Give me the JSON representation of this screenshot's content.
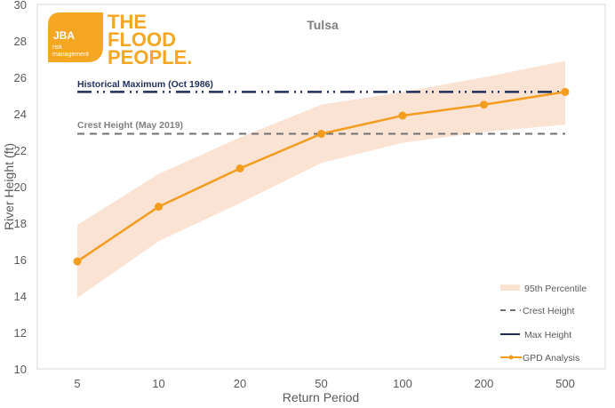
{
  "chart_data": {
    "type": "line",
    "title": "Tulsa",
    "xlabel": "Return Period",
    "ylabel": "River Height (ft)",
    "ylim": [
      10,
      30
    ],
    "yticks": [
      "10",
      "12",
      "14",
      "16",
      "18",
      "20",
      "22",
      "24",
      "26",
      "28",
      "30"
    ],
    "ytick_values": [
      10,
      12,
      14,
      16,
      18,
      20,
      22,
      24,
      26,
      28,
      30
    ],
    "categories": [
      "5",
      "10",
      "20",
      "50",
      "100",
      "200",
      "500"
    ],
    "grid": false,
    "legend_position": "bottom-right",
    "series": [
      {
        "name": "GPD Analysis",
        "type": "line-markers",
        "color": "#f39c1e",
        "values": [
          15.9,
          18.9,
          21.0,
          22.9,
          23.9,
          24.5,
          25.2
        ]
      },
      {
        "name": "95th Percentile",
        "type": "band",
        "color": "#fbe3d4",
        "lower": [
          13.9,
          17.0,
          19.1,
          21.3,
          22.4,
          23.0,
          23.4
        ],
        "upper": [
          17.9,
          20.7,
          22.7,
          24.5,
          25.2,
          26.0,
          26.9
        ]
      },
      {
        "name": "Crest Height",
        "type": "hline",
        "color": "#707070",
        "value": 22.9,
        "annotation": "Crest Height (May 2019)"
      },
      {
        "name": "Max Height",
        "type": "hline",
        "color": "#1f2f5c",
        "value": 25.2,
        "annotation": "Historical Maximum (Oct 1986)"
      }
    ],
    "legend": [
      "95th Percentile",
      "Crest Height",
      "Max Height",
      "GPD Analysis"
    ]
  },
  "logo": {
    "badge_name": "JBA",
    "badge_line1": "risk",
    "badge_line2": "management",
    "wordmark": [
      "THE",
      "FLOOD",
      "PEOPLE."
    ],
    "brand_color": "#f5a623"
  }
}
